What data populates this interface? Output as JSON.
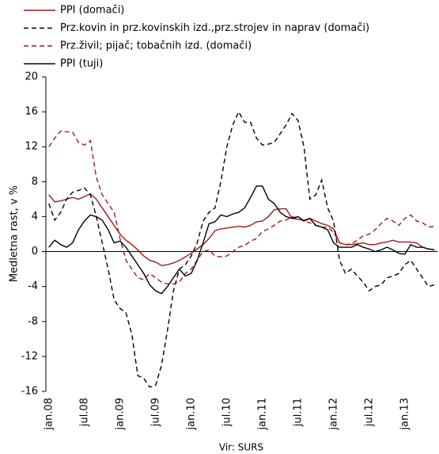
{
  "chart_data": {
    "type": "line",
    "ylabel": "Medletna rast, v %",
    "xlabel": "Vir: SURS",
    "categories": [
      "jan.08",
      null,
      null,
      null,
      null,
      null,
      "jul.08",
      null,
      null,
      null,
      null,
      null,
      "jan.09",
      null,
      null,
      null,
      null,
      null,
      "jul.09",
      null,
      null,
      null,
      null,
      null,
      "jan.10",
      null,
      null,
      null,
      null,
      null,
      "jul.10",
      null,
      null,
      null,
      null,
      null,
      "jan.11",
      null,
      null,
      null,
      null,
      null,
      "jul.11",
      null,
      null,
      null,
      null,
      null,
      "jan.12",
      null,
      null,
      null,
      null,
      null,
      "jul.12",
      null,
      null,
      null,
      null,
      null,
      "jan.13",
      null,
      null,
      null,
      null,
      null
    ],
    "ylim": [
      -16,
      20
    ],
    "yticks": [
      -16,
      -12,
      -8,
      -4,
      0,
      4,
      8,
      12,
      16,
      20
    ],
    "series": [
      {
        "name": "PPI (domači)",
        "color": "#9e1b1b",
        "dash": "solid",
        "values": [
          6.5,
          5.7,
          5.8,
          6.0,
          6.2,
          6.0,
          6.3,
          6.6,
          6.0,
          5.0,
          4.0,
          3.0,
          2.0,
          1.3,
          0.8,
          0.2,
          -0.5,
          -1.0,
          -1.2,
          -1.6,
          -1.5,
          -1.3,
          -1.0,
          -0.6,
          -0.2,
          0.3,
          0.8,
          1.5,
          2.4,
          2.6,
          2.7,
          2.8,
          2.9,
          2.8,
          3.0,
          3.4,
          3.5,
          4.0,
          4.8,
          4.9,
          4.9,
          3.8,
          3.7,
          3.6,
          3.8,
          3.5,
          3.2,
          3.0,
          2.6,
          1.0,
          0.8,
          0.8,
          0.9,
          1.0,
          0.8,
          0.8,
          1.0,
          1.1,
          1.3,
          1.1,
          1.1,
          1.1,
          1.0,
          0.5,
          0.3,
          0.2
        ]
      },
      {
        "name": "Prz.kovin in prz.kovinskih izd.,prz.strojev in naprav (domači)",
        "color": "#000000",
        "dash": "dashed",
        "values": [
          5.5,
          3.6,
          4.5,
          6.0,
          6.8,
          7.0,
          7.3,
          6.5,
          4.0,
          1.0,
          -2.0,
          -5.5,
          -6.5,
          -7.0,
          -9.5,
          -14.2,
          -14.5,
          -15.5,
          -15.3,
          -13.0,
          -9.0,
          -4.5,
          -2.0,
          -1.5,
          -0.5,
          1.0,
          3.5,
          4.5,
          5.0,
          8.0,
          12.0,
          14.5,
          16.0,
          14.8,
          14.8,
          13.0,
          12.2,
          12.3,
          12.5,
          13.5,
          14.5,
          15.8,
          15.0,
          12.0,
          6.0,
          6.5,
          8.2,
          5.0,
          3.5,
          -1.0,
          -2.5,
          -2.0,
          -2.8,
          -3.5,
          -4.5,
          -4.0,
          -3.8,
          -3.0,
          -2.8,
          -2.5,
          -1.5,
          -1.0,
          -2.0,
          -3.0,
          -4.0,
          -3.8
        ]
      },
      {
        "name": "Prz.živil; pijač; tobačnih izd. (domači)",
        "color": "#9e1b1b",
        "dash": "dashed",
        "values": [
          12.0,
          13.0,
          13.8,
          13.7,
          13.7,
          12.5,
          12.2,
          12.7,
          8.5,
          6.5,
          5.5,
          4.5,
          1.5,
          -1.0,
          -2.0,
          -3.0,
          -3.2,
          -2.5,
          -3.0,
          -3.5,
          -3.7,
          -3.7,
          -3.5,
          -2.5,
          -2.0,
          -1.0,
          0.0,
          0.2,
          -0.5,
          -0.6,
          -0.5,
          0.0,
          0.5,
          0.7,
          1.2,
          1.5,
          2.3,
          2.6,
          3.0,
          3.5,
          3.6,
          4.0,
          3.8,
          3.5,
          3.3,
          3.0,
          2.8,
          2.8,
          2.2,
          1.0,
          0.8,
          0.9,
          1.3,
          1.8,
          2.0,
          2.5,
          3.2,
          3.8,
          3.5,
          3.0,
          3.8,
          4.2,
          3.5,
          3.3,
          2.8,
          2.9
        ]
      },
      {
        "name": "PPI (tuji)",
        "color": "#000000",
        "dash": "solid",
        "values": [
          0.5,
          1.3,
          0.8,
          0.5,
          1.0,
          2.5,
          3.5,
          4.2,
          4.0,
          3.6,
          2.5,
          1.0,
          1.2,
          0.5,
          -0.5,
          -1.5,
          -2.5,
          -3.8,
          -4.5,
          -4.8,
          -4.0,
          -3.0,
          -2.0,
          -2.8,
          -2.5,
          -1.0,
          1.0,
          3.2,
          3.4,
          4.2,
          4.0,
          4.3,
          4.5,
          5.0,
          6.2,
          7.5,
          7.5,
          6.0,
          5.5,
          4.5,
          4.0,
          3.8,
          4.0,
          3.5,
          3.8,
          3.0,
          2.8,
          2.5,
          1.0,
          0.5,
          0.5,
          0.5,
          0.8,
          0.5,
          0.3,
          0.0,
          0.2,
          0.5,
          0.2,
          -0.2,
          -0.3,
          0.8,
          0.5,
          0.5,
          0.3,
          0.2
        ]
      }
    ]
  }
}
